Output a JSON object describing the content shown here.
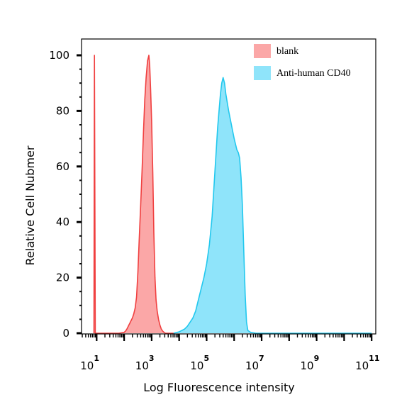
{
  "chart_data": {
    "type": "area",
    "xlabel": "Log Fluorescence intensity",
    "ylabel": "Relative Cell Nubmer",
    "x_scale": "log",
    "xlim": [
      1,
      11
    ],
    "ylim": [
      0,
      100
    ],
    "x_ticks": [
      {
        "base": "10",
        "exp": "1"
      },
      {
        "base": "10",
        "exp": "3"
      },
      {
        "base": "10",
        "exp": "5"
      },
      {
        "base": "10",
        "exp": "7"
      },
      {
        "base": "10",
        "exp": "9"
      },
      {
        "base": "10",
        "exp": "11"
      }
    ],
    "y_ticks": [
      "0",
      "20",
      "40",
      "60",
      "80",
      "100"
    ],
    "legend_position": "top-right",
    "series": [
      {
        "name": "blank",
        "fill": "#fba7a7",
        "stroke": "#f04040",
        "log10_x": [
          0.9,
          0.92,
          0.95,
          1.0,
          1.2,
          1.5,
          1.8,
          2.0,
          2.05,
          2.1,
          2.15,
          2.2,
          2.25,
          2.3,
          2.35,
          2.4,
          2.45,
          2.5,
          2.55,
          2.6,
          2.65,
          2.7,
          2.75,
          2.8,
          2.85,
          2.9,
          2.93,
          2.96,
          3.0,
          3.04,
          3.08,
          3.12,
          3.16,
          3.2,
          3.25,
          3.3,
          3.35,
          3.4,
          3.45,
          3.5,
          3.55,
          3.6,
          3.7,
          3.8
        ],
        "y": [
          0,
          100,
          0,
          0,
          0,
          0,
          0,
          0.3,
          0.8,
          1.5,
          2.5,
          3.5,
          4.5,
          5.5,
          7,
          9,
          13,
          22,
          34,
          46,
          58,
          72,
          84,
          92,
          98,
          100,
          96,
          88,
          76,
          58,
          36,
          20,
          12,
          8,
          5,
          3,
          1.5,
          0.8,
          0.3,
          0,
          0,
          0,
          0,
          0
        ]
      },
      {
        "name": "Anti-human CD40",
        "fill": "#8fe4fa",
        "stroke": "#22c8ee",
        "log10_x": [
          3.8,
          4.0,
          4.2,
          4.3,
          4.4,
          4.5,
          4.6,
          4.7,
          4.8,
          4.9,
          5.0,
          5.1,
          5.2,
          5.3,
          5.4,
          5.5,
          5.55,
          5.6,
          5.65,
          5.7,
          5.8,
          5.9,
          6.0,
          6.1,
          6.15,
          6.2,
          6.25,
          6.3,
          6.35,
          6.4,
          6.45,
          6.5,
          6.6,
          6.8,
          7.0,
          8.0,
          9.0,
          10.0,
          11.0
        ],
        "y": [
          0,
          0.5,
          1.5,
          2.5,
          4,
          5.5,
          8,
          12,
          16,
          20,
          25,
          32,
          42,
          58,
          74,
          86,
          90,
          92,
          90,
          86,
          80,
          75,
          70,
          66,
          65,
          63,
          56,
          46,
          30,
          14,
          4,
          1,
          0.3,
          0,
          0,
          0,
          0,
          0,
          0
        ]
      }
    ]
  }
}
